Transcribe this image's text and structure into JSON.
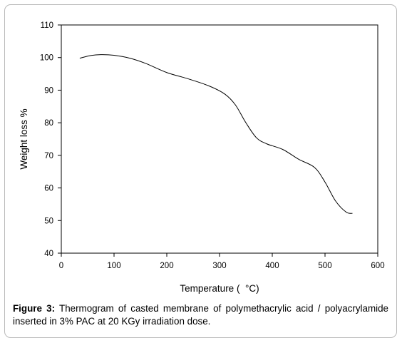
{
  "chart_data": {
    "type": "line",
    "title": "",
    "xlabel": "Temperature (  °C)",
    "ylabel": "Weight loss %",
    "xlim": [
      0,
      600
    ],
    "ylim": [
      40,
      110
    ],
    "xticks": [
      0,
      100,
      200,
      300,
      400,
      500,
      600
    ],
    "yticks": [
      40,
      50,
      60,
      70,
      80,
      90,
      100,
      110
    ],
    "grid": false,
    "legend": "none",
    "line_color": "#000000",
    "series": [
      {
        "x": [
          35,
          55,
          75,
          100,
          130,
          160,
          200,
          240,
          280,
          310,
          330,
          350,
          370,
          390,
          420,
          450,
          480,
          500,
          520,
          540,
          552
        ],
        "y": [
          99.8,
          100.6,
          100.9,
          100.7,
          99.8,
          98.2,
          95.4,
          93.5,
          91.3,
          88.8,
          85.5,
          80.0,
          75.4,
          73.5,
          71.8,
          68.8,
          66.3,
          61.8,
          56.0,
          52.6,
          52.2
        ]
      }
    ]
  },
  "caption": {
    "label": "Figure 3:",
    "text": "Thermogram of casted membrane of polymethacrylic acid / polyacrylamide inserted in 3% PAC at 20 KGy irradiation dose."
  }
}
